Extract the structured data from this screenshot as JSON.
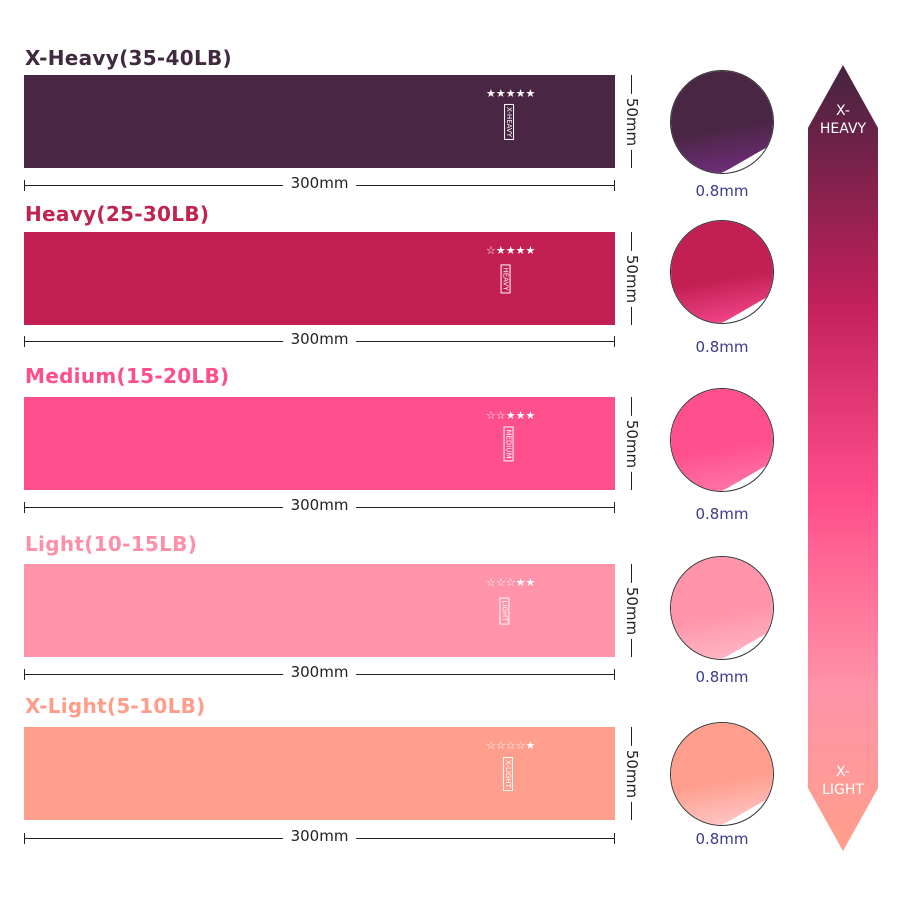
{
  "bands": [
    {
      "title": "X-Heavy(35-40LB)",
      "title_color": "#3f2a40",
      "color": "#4a2645",
      "inner": "#7a2f8a",
      "stars": "★★★★★",
      "level": "X-HEAVY",
      "length": "300mm",
      "width": "50mm",
      "thickness": "0.8mm"
    },
    {
      "title": "Heavy(25-30LB)",
      "title_color": "#c0234f",
      "color": "#c21f52",
      "inner": "#ff4f9a",
      "stars": "☆★★★★",
      "level": "HEAVY",
      "length": "300mm",
      "width": "50mm",
      "thickness": "0.8mm"
    },
    {
      "title": "Medium(15-20LB)",
      "title_color": "#ff4f8a",
      "color": "#ff4f8c",
      "inner": "#ff7fb0",
      "stars": "☆☆★★★",
      "level": "MEDIUM",
      "length": "300mm",
      "width": "50mm",
      "thickness": "0.8mm"
    },
    {
      "title": "Light(10-15LB)",
      "title_color": "#ff8fa8",
      "color": "#ff94aa",
      "inner": "#ffc0cc",
      "stars": "☆☆☆★★",
      "level": "LIGHT",
      "length": "300mm",
      "width": "50mm",
      "thickness": "0.8mm"
    },
    {
      "title": "X-Light(5-10LB)",
      "title_color": "#ff9d8a",
      "color": "#ff9e8c",
      "inner": "#ffd0d8",
      "stars": "☆☆☆☆★",
      "level": "X-LIGHT",
      "length": "300mm",
      "width": "50mm",
      "thickness": "0.8mm"
    }
  ],
  "scale": {
    "top": "X-\nHEAVY",
    "bottom": "X-\nLIGHT"
  }
}
